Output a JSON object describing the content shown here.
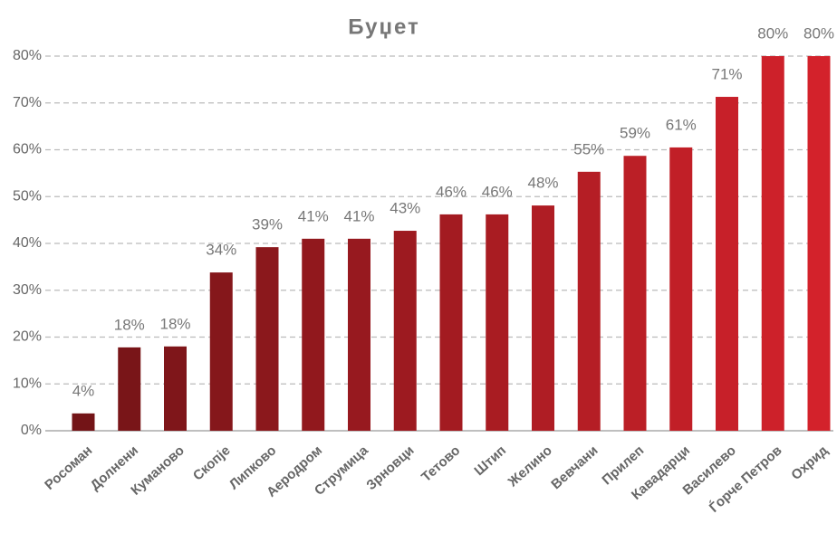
{
  "chart_data": {
    "type": "bar",
    "title": "Буџет",
    "categories": [
      "Росоман",
      "Долнени",
      "Куманово",
      "Скопје",
      "Липково",
      "Аеродром",
      "Струмица",
      "Зрновци",
      "Тетово",
      "Штип",
      "Желино",
      "Вевчани",
      "Прилеп",
      "Кавадарци",
      "Василево",
      "Ѓорче Петров",
      "Охрид"
    ],
    "values": [
      3.7,
      17.8,
      18.0,
      33.8,
      39.2,
      41.0,
      41.0,
      42.7,
      46.2,
      46.2,
      48.1,
      55.3,
      58.7,
      60.5,
      71.3,
      80,
      80
    ],
    "value_labels": [
      "4%",
      "18%",
      "18%",
      "34%",
      "39%",
      "41%",
      "41%",
      "43%",
      "46%",
      "46%",
      "48%",
      "55%",
      "59%",
      "61%",
      "71%",
      "80%",
      "80%"
    ],
    "colors": [
      "#731417",
      "#791518",
      "#7f161a",
      "#85171b",
      "#8b181c",
      "#91181d",
      "#97191f",
      "#9d1a20",
      "#a31b21",
      "#a91c22",
      "#af1d24",
      "#b51e25",
      "#bb1f26",
      "#c11f27",
      "#c72029",
      "#cd212a",
      "#d3222b"
    ],
    "ylim": [
      0,
      80
    ],
    "yticks": [
      {
        "value": 0,
        "label": "0%"
      },
      {
        "value": 10,
        "label": "10%"
      },
      {
        "value": 20,
        "label": "20%"
      },
      {
        "value": 30,
        "label": "30%"
      },
      {
        "value": 40,
        "label": "40%"
      },
      {
        "value": 50,
        "label": "50%"
      },
      {
        "value": 60,
        "label": "60%"
      },
      {
        "value": 70,
        "label": "70%"
      },
      {
        "value": 80,
        "label": "80%"
      }
    ],
    "grid": true
  }
}
